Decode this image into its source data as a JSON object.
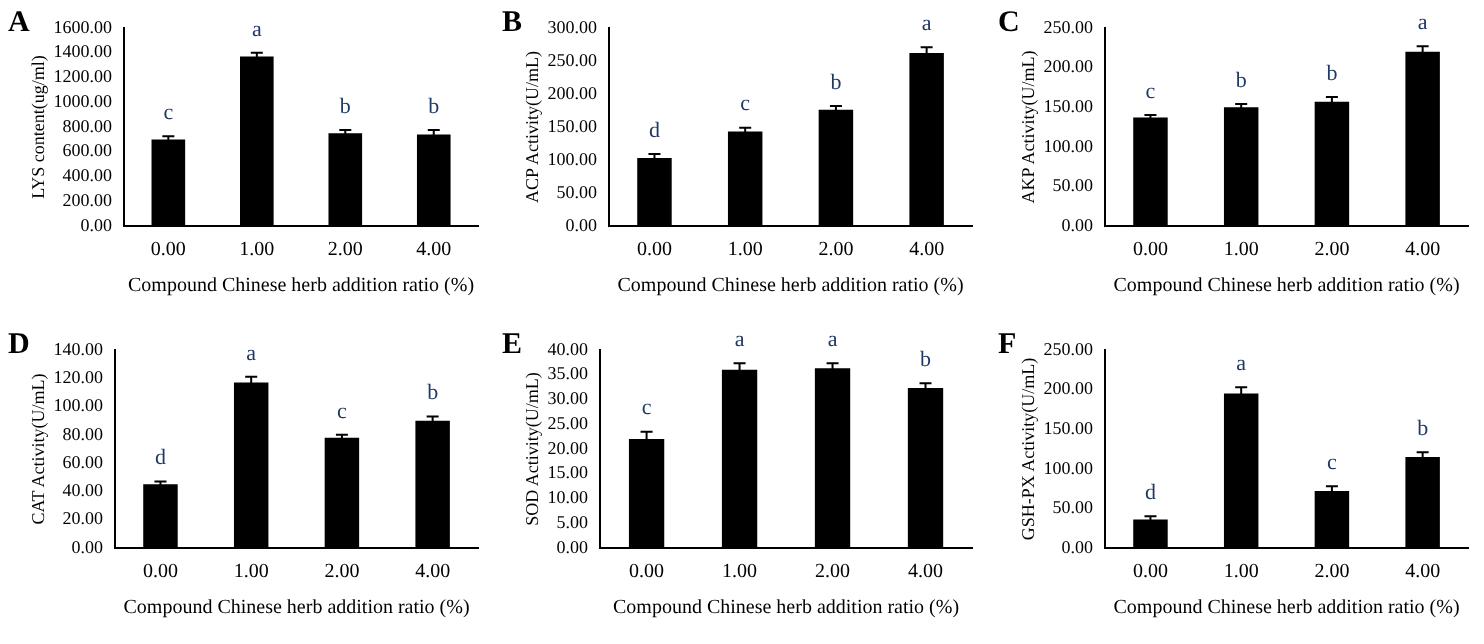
{
  "chart_data": [
    {
      "type": "bar",
      "title": "A",
      "xlabel": "Compound Chinese herb addition ratio (%)",
      "ylabel": "LYS content(ug/ml)",
      "categories": [
        "0.00",
        "1.00",
        "2.00",
        "4.00"
      ],
      "values": [
        700,
        1370,
        750,
        740
      ],
      "errors": [
        25,
        30,
        25,
        35
      ],
      "color": "#000000",
      "ylim": [
        0,
        1600
      ],
      "yticks": [
        {
          "value": 0,
          "label": "0.00"
        },
        {
          "value": 200,
          "label": "200.00"
        },
        {
          "value": 400,
          "label": "400.00"
        },
        {
          "value": 600,
          "label": "600.00"
        },
        {
          "value": 800,
          "label": "800.00"
        },
        {
          "value": 1000,
          "label": "1000.00"
        },
        {
          "value": 1200,
          "label": "1200.00"
        },
        {
          "value": 1400,
          "label": "1400.00"
        },
        {
          "value": 1600,
          "label": "1600.00"
        }
      ],
      "grid": false,
      "legend": false,
      "annotations": [
        "c",
        "a",
        "b",
        "b"
      ]
    },
    {
      "type": "bar",
      "title": "B",
      "xlabel": "Compound Chinese herb addition ratio (%)",
      "ylabel": "ACP Activity(U/mL)",
      "categories": [
        "0.00",
        "1.00",
        "2.00",
        "4.00"
      ],
      "values": [
        103,
        143,
        176,
        262
      ],
      "errors": [
        6,
        6,
        6,
        9
      ],
      "color": "#000000",
      "ylim": [
        0,
        300
      ],
      "yticks": [
        {
          "value": 0,
          "label": "0.00"
        },
        {
          "value": 50,
          "label": "50.00"
        },
        {
          "value": 100,
          "label": "100.00"
        },
        {
          "value": 150,
          "label": "150.00"
        },
        {
          "value": 200,
          "label": "200.00"
        },
        {
          "value": 250,
          "label": "250.00"
        },
        {
          "value": 300,
          "label": "300.00"
        }
      ],
      "grid": false,
      "legend": false,
      "annotations": [
        "d",
        "c",
        "b",
        "a"
      ]
    },
    {
      "type": "bar",
      "title": "C",
      "xlabel": "Compound Chinese herb addition ratio (%)",
      "ylabel": "AKP Activity(U/mL)",
      "categories": [
        "0.00",
        "1.00",
        "2.00",
        "4.00"
      ],
      "values": [
        137,
        150,
        157,
        220
      ],
      "errors": [
        3,
        4,
        6,
        7
      ],
      "color": "#000000",
      "ylim": [
        0,
        250
      ],
      "yticks": [
        {
          "value": 0,
          "label": "0.00"
        },
        {
          "value": 50,
          "label": "50.00"
        },
        {
          "value": 100,
          "label": "100.00"
        },
        {
          "value": 150,
          "label": "150.00"
        },
        {
          "value": 200,
          "label": "200.00"
        },
        {
          "value": 250,
          "label": "250.00"
        }
      ],
      "grid": false,
      "legend": false,
      "annotations": [
        "c",
        "b",
        "b",
        "a"
      ]
    },
    {
      "type": "bar",
      "title": "D",
      "xlabel": "Compound Chinese herb addition ratio (%)",
      "ylabel": "CAT Activity(U/mL)",
      "categories": [
        "0.00",
        "1.00",
        "2.00",
        "4.00"
      ],
      "values": [
        45,
        117,
        78,
        90
      ],
      "errors": [
        2,
        4,
        2,
        3
      ],
      "color": "#000000",
      "ylim": [
        0,
        140
      ],
      "yticks": [
        {
          "value": 0,
          "label": "0.00"
        },
        {
          "value": 20,
          "label": "20.00"
        },
        {
          "value": 40,
          "label": "40.00"
        },
        {
          "value": 60,
          "label": "60.00"
        },
        {
          "value": 80,
          "label": "80.00"
        },
        {
          "value": 100,
          "label": "100.00"
        },
        {
          "value": 120,
          "label": "120.00"
        },
        {
          "value": 140,
          "label": "140.00"
        }
      ],
      "grid": false,
      "legend": false,
      "annotations": [
        "d",
        "a",
        "c",
        "b"
      ]
    },
    {
      "type": "bar",
      "title": "E",
      "xlabel": "Compound Chinese herb addition ratio (%)",
      "ylabel": "SOD Activity(U/mL)",
      "categories": [
        "0.00",
        "1.00",
        "2.00",
        "4.00"
      ],
      "values": [
        22,
        36,
        36.3,
        32.3
      ],
      "errors": [
        1.5,
        1.3,
        1,
        1
      ],
      "color": "#000000",
      "ylim": [
        0,
        40
      ],
      "yticks": [
        {
          "value": 0,
          "label": "0.00"
        },
        {
          "value": 5,
          "label": "5.00"
        },
        {
          "value": 10,
          "label": "10.00"
        },
        {
          "value": 15,
          "label": "15.00"
        },
        {
          "value": 20,
          "label": "20.00"
        },
        {
          "value": 25,
          "label": "25.00"
        },
        {
          "value": 30,
          "label": "30.00"
        },
        {
          "value": 35,
          "label": "35.00"
        },
        {
          "value": 40,
          "label": "40.00"
        }
      ],
      "grid": false,
      "legend": false,
      "annotations": [
        "c",
        "a",
        "a",
        "b"
      ]
    },
    {
      "type": "bar",
      "title": "F",
      "xlabel": "Compound Chinese herb addition ratio (%)",
      "ylabel": "GSH-PX Activity(U/mL)",
      "categories": [
        "0.00",
        "1.00",
        "2.00",
        "4.00"
      ],
      "values": [
        36,
        195,
        72,
        115
      ],
      "errors": [
        4,
        8,
        6,
        6
      ],
      "color": "#000000",
      "ylim": [
        0,
        250
      ],
      "yticks": [
        {
          "value": 0,
          "label": "0.00"
        },
        {
          "value": 50,
          "label": "50.00"
        },
        {
          "value": 100,
          "label": "100.00"
        },
        {
          "value": 150,
          "label": "150.00"
        },
        {
          "value": 200,
          "label": "200.00"
        },
        {
          "value": 250,
          "label": "250.00"
        }
      ],
      "grid": false,
      "legend": false,
      "annotations": [
        "d",
        "a",
        "c",
        "b"
      ]
    }
  ]
}
